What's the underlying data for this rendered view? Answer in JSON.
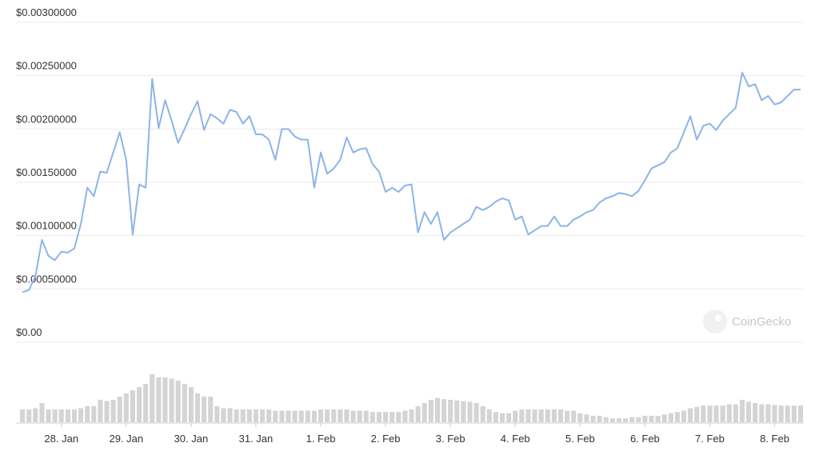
{
  "chart_data": {
    "type": "line",
    "watermark": "CoinGecko",
    "xlim": [
      27.3,
      39.45
    ],
    "xticks": [
      {
        "value": 28,
        "label": "28. Jan"
      },
      {
        "value": 29,
        "label": "29. Jan"
      },
      {
        "value": 30,
        "label": "30. Jan"
      },
      {
        "value": 31,
        "label": "31. Jan"
      },
      {
        "value": 32,
        "label": "1. Feb"
      },
      {
        "value": 33,
        "label": "2. Feb"
      },
      {
        "value": 34,
        "label": "3. Feb"
      },
      {
        "value": 35,
        "label": "4. Feb"
      },
      {
        "value": 36,
        "label": "5. Feb"
      },
      {
        "value": 37,
        "label": "6. Feb"
      },
      {
        "value": 38,
        "label": "7. Feb"
      },
      {
        "value": 39,
        "label": "8. Feb"
      }
    ],
    "ylim": [
      0,
      0.003
    ],
    "yticks": [
      {
        "value": 0,
        "label": "$0.00"
      },
      {
        "value": 0.0005,
        "label": "$0.00050000"
      },
      {
        "value": 0.001,
        "label": "$0.00100000"
      },
      {
        "value": 0.0015,
        "label": "$0.00150000"
      },
      {
        "value": 0.002,
        "label": "$0.00200000"
      },
      {
        "value": 0.0025,
        "label": "$0.00250000"
      },
      {
        "value": 0.003,
        "label": "$0.00300000"
      }
    ],
    "grid": true,
    "x": [
      27.4,
      27.5,
      27.6,
      27.7,
      27.8,
      27.9,
      28.0,
      28.1,
      28.2,
      28.3,
      28.4,
      28.5,
      28.6,
      28.7,
      28.8,
      28.9,
      29.0,
      29.1,
      29.2,
      29.3,
      29.4,
      29.5,
      29.6,
      29.7,
      29.8,
      29.9,
      30.0,
      30.1,
      30.2,
      30.3,
      30.4,
      30.5,
      30.6,
      30.7,
      30.8,
      30.9,
      31.0,
      31.1,
      31.2,
      31.3,
      31.4,
      31.5,
      31.6,
      31.7,
      31.8,
      31.9,
      32.0,
      32.1,
      32.2,
      32.3,
      32.4,
      32.5,
      32.6,
      32.7,
      32.8,
      32.9,
      33.0,
      33.1,
      33.2,
      33.3,
      33.4,
      33.5,
      33.6,
      33.7,
      33.8,
      33.9,
      34.0,
      34.1,
      34.2,
      34.3,
      34.4,
      34.5,
      34.6,
      34.7,
      34.8,
      34.9,
      35.0,
      35.1,
      35.2,
      35.3,
      35.4,
      35.5,
      35.6,
      35.7,
      35.8,
      35.9,
      36.0,
      36.1,
      36.2,
      36.3,
      36.4,
      36.5,
      36.6,
      36.7,
      36.8,
      36.9,
      37.0,
      37.1,
      37.2,
      37.3,
      37.4,
      37.5,
      37.6,
      37.7,
      37.8,
      37.9,
      38.0,
      38.1,
      38.2,
      38.3,
      38.4,
      38.5,
      38.6,
      38.7,
      38.8,
      38.9,
      39.0,
      39.1,
      39.2,
      39.3,
      39.4
    ],
    "series": [
      {
        "color": "#8db4e8",
        "values": [
          0.00047,
          0.00049,
          0.00062,
          0.00096,
          0.00081,
          0.00077,
          0.00085,
          0.00084,
          0.00088,
          0.00111,
          0.00145,
          0.00137,
          0.0016,
          0.00159,
          0.00178,
          0.00197,
          0.00171,
          0.00101,
          0.00148,
          0.00145,
          0.00247,
          0.00201,
          0.00227,
          0.00208,
          0.00187,
          0.002,
          0.00214,
          0.00226,
          0.00199,
          0.00214,
          0.0021,
          0.00205,
          0.00218,
          0.00216,
          0.00205,
          0.00212,
          0.00195,
          0.00195,
          0.0019,
          0.00171,
          0.002,
          0.002,
          0.00193,
          0.0019,
          0.0019,
          0.00145,
          0.00178,
          0.00158,
          0.00163,
          0.00171,
          0.00192,
          0.00178,
          0.00181,
          0.00182,
          0.00167,
          0.0016,
          0.00141,
          0.00145,
          0.00141,
          0.00147,
          0.00148,
          0.00103,
          0.00122,
          0.00111,
          0.00122,
          0.00096,
          0.00103,
          0.00107,
          0.00111,
          0.00115,
          0.00127,
          0.00124,
          0.00127,
          0.00132,
          0.00135,
          0.00133,
          0.00115,
          0.00118,
          0.00101,
          0.00105,
          0.00109,
          0.00109,
          0.00118,
          0.00109,
          0.00109,
          0.00115,
          0.00118,
          0.00122,
          0.00124,
          0.00131,
          0.00135,
          0.00137,
          0.0014,
          0.00139,
          0.00137,
          0.00142,
          0.00152,
          0.00163,
          0.00166,
          0.00169,
          0.00178,
          0.00182,
          0.00197,
          0.00212,
          0.0019,
          0.00203,
          0.00205,
          0.00199,
          0.00208,
          0.00214,
          0.0022,
          0.00253,
          0.0024,
          0.00242,
          0.00227,
          0.00231,
          0.00223,
          0.00225,
          0.00231,
          0.00237,
          0.00237
        ]
      }
    ],
    "volume": {
      "color": "#d4d4d4",
      "vlim": [
        0,
        100
      ],
      "values": [
        20,
        20,
        22,
        30,
        20,
        20,
        20,
        20,
        20,
        22,
        25,
        25,
        35,
        33,
        35,
        40,
        45,
        50,
        55,
        60,
        75,
        70,
        70,
        68,
        65,
        60,
        55,
        45,
        40,
        40,
        25,
        22,
        22,
        20,
        20,
        20,
        20,
        20,
        20,
        18,
        18,
        18,
        18,
        18,
        18,
        18,
        20,
        20,
        20,
        20,
        20,
        18,
        18,
        18,
        16,
        16,
        16,
        16,
        16,
        18,
        20,
        25,
        30,
        35,
        38,
        36,
        35,
        34,
        33,
        32,
        30,
        25,
        20,
        16,
        14,
        14,
        18,
        20,
        20,
        20,
        20,
        20,
        20,
        20,
        18,
        18,
        14,
        12,
        10,
        10,
        8,
        6,
        6,
        6,
        8,
        8,
        10,
        10,
        10,
        12,
        14,
        16,
        18,
        22,
        24,
        26,
        26,
        26,
        26,
        28,
        28,
        35,
        32,
        30,
        28,
        28,
        27,
        26,
        26,
        26,
        26
      ]
    }
  }
}
